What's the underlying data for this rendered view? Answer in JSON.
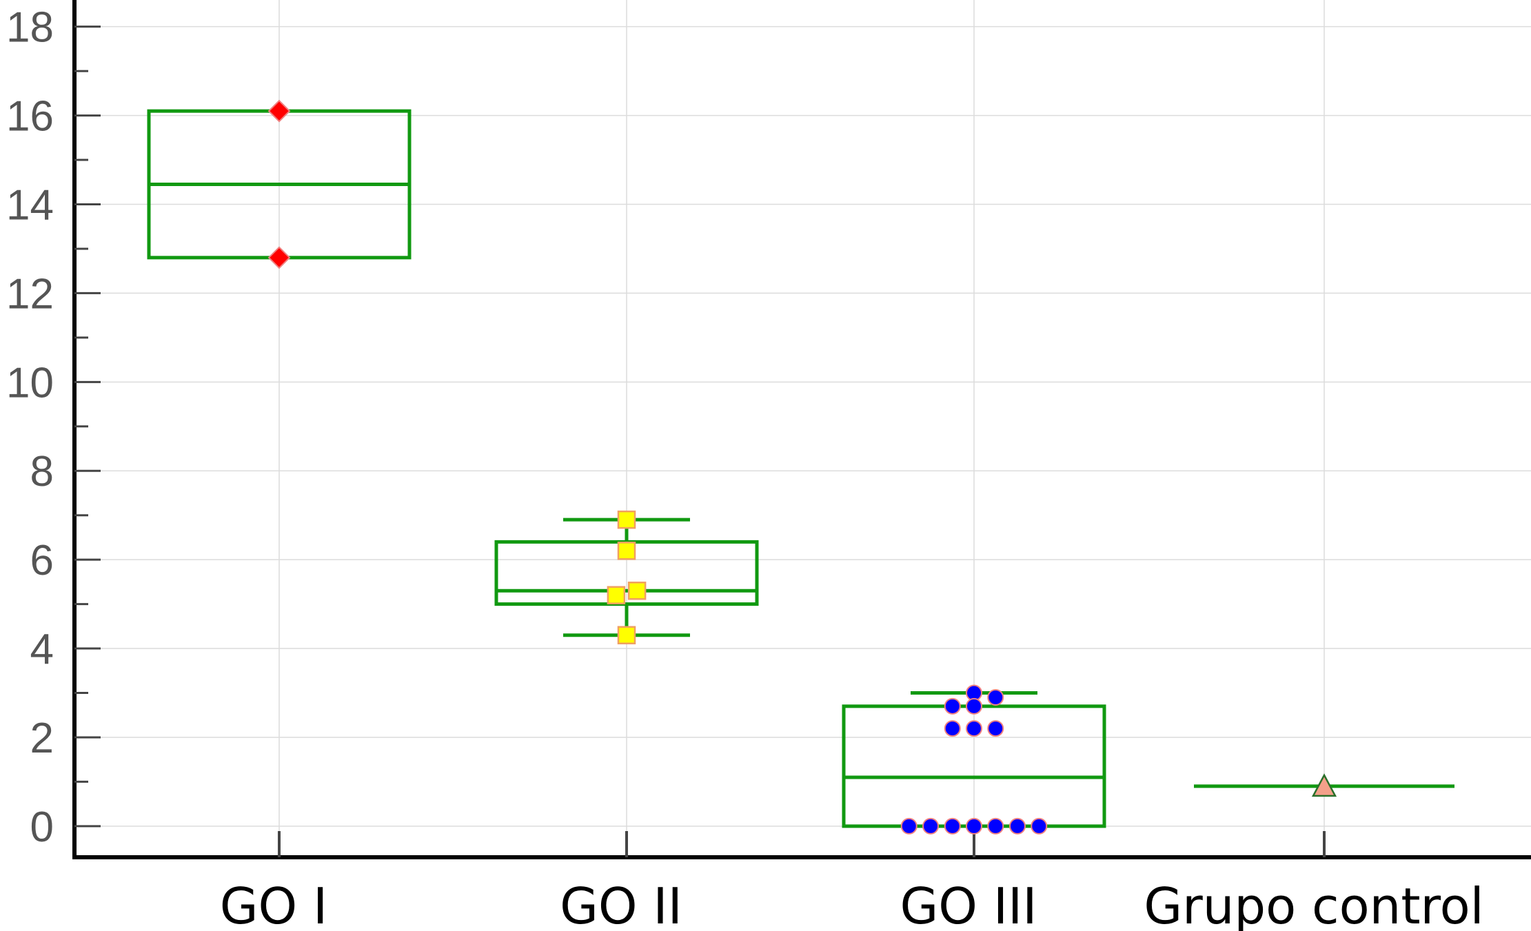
{
  "chart_data": {
    "type": "boxplot",
    "title": "",
    "xlabel": "",
    "ylabel": "",
    "ylim": [
      -0.7,
      18.6
    ],
    "yticks": [
      0,
      2,
      4,
      6,
      8,
      10,
      12,
      14,
      16,
      18
    ],
    "yminor_step": 1,
    "grid": true,
    "categories": [
      "GO I",
      "GO II",
      "GO III",
      "Grupo control"
    ],
    "colors": {
      "box": "#119911",
      "grid": "#dcdcdc",
      "axis": "#000000",
      "marker_edge": "#f08080"
    },
    "groups": [
      {
        "name": "GO I",
        "q1": 12.8,
        "median": 14.45,
        "q3": 16.1,
        "whisker_low": 12.8,
        "whisker_high": 16.1,
        "marker": "diamond",
        "marker_color": "#ff0000",
        "marker_edge": "#f08080",
        "points": [
          {
            "y": 16.1,
            "dx": 0
          },
          {
            "y": 12.8,
            "dx": 0
          }
        ]
      },
      {
        "name": "GO II",
        "q1": 5.0,
        "median": 5.3,
        "q3": 6.4,
        "whisker_low": 4.3,
        "whisker_high": 6.9,
        "marker": "square",
        "marker_color": "#ffff00",
        "marker_edge": "#f0a060",
        "points": [
          {
            "y": 6.9,
            "dx": 0
          },
          {
            "y": 6.2,
            "dx": 0
          },
          {
            "y": 5.3,
            "dx": 0.03
          },
          {
            "y": 5.2,
            "dx": -0.03
          },
          {
            "y": 4.3,
            "dx": 0
          }
        ]
      },
      {
        "name": "GO III",
        "q1": 0,
        "median": 1.1,
        "q3": 2.7,
        "whisker_low": 0,
        "whisker_high": 3.0,
        "marker": "circle",
        "marker_color": "#0000ff",
        "marker_edge": "#f08080",
        "points": [
          {
            "y": 3.0,
            "dx": 0
          },
          {
            "y": 2.9,
            "dx": 0.062
          },
          {
            "y": 2.7,
            "dx": -0.062
          },
          {
            "y": 2.7,
            "dx": 0
          },
          {
            "y": 2.2,
            "dx": -0.062
          },
          {
            "y": 2.2,
            "dx": 0
          },
          {
            "y": 2.2,
            "dx": 0.062
          },
          {
            "y": 0,
            "dx": -0.187
          },
          {
            "y": 0,
            "dx": -0.125
          },
          {
            "y": 0,
            "dx": -0.062
          },
          {
            "y": 0,
            "dx": 0
          },
          {
            "y": 0,
            "dx": 0.062
          },
          {
            "y": 0,
            "dx": 0.125
          },
          {
            "y": 0,
            "dx": 0.187
          }
        ]
      },
      {
        "name": "Grupo control",
        "q1": 0.9,
        "median": 0.9,
        "q3": 0.9,
        "whisker_low": 0.9,
        "whisker_high": 0.9,
        "marker": "triangle",
        "marker_color": "#f4a08a",
        "marker_edge": "#2a6f2a",
        "points": [
          {
            "y": 0.9,
            "dx": 0
          }
        ]
      }
    ]
  }
}
